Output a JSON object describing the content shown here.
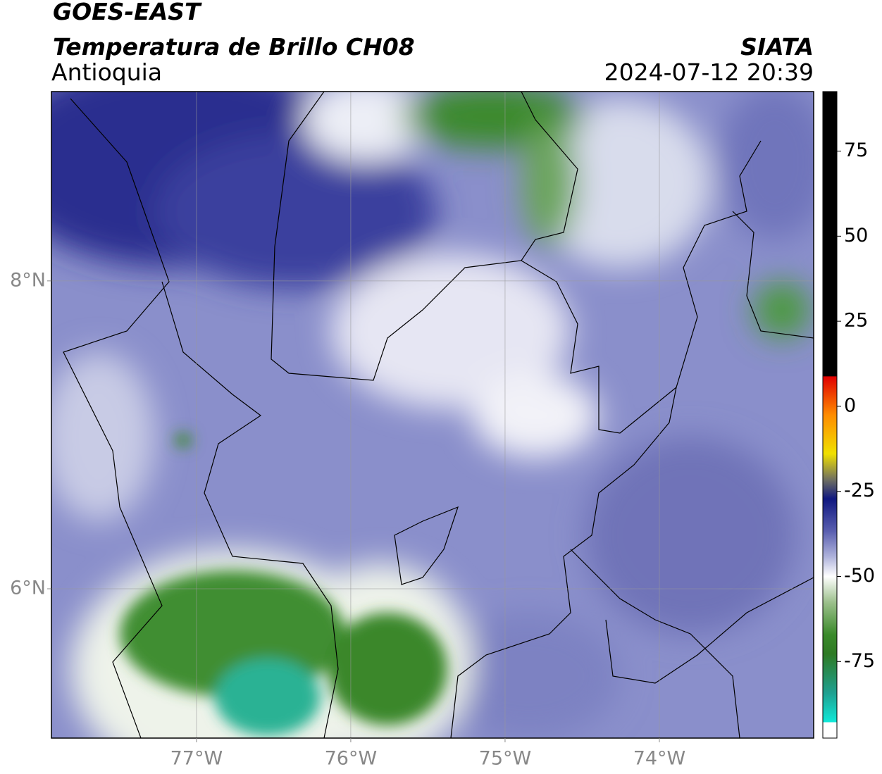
{
  "header": {
    "satellite": "GOES-EAST",
    "product": "Temperatura de Brillo CH08",
    "region": "Antioquia",
    "agency": "SIATA",
    "datetime": "2024-07-12 20:39"
  },
  "map": {
    "xlim": [
      -77.94,
      -73.0
    ],
    "ylim": [
      5.03,
      9.23
    ],
    "grid": true,
    "xticks": [
      {
        "value": -77,
        "label": "77°W"
      },
      {
        "value": -76,
        "label": "76°W"
      },
      {
        "value": -75,
        "label": "75°W"
      },
      {
        "value": -74,
        "label": "74°W"
      }
    ],
    "yticks": [
      {
        "value": 8,
        "label": "8°N"
      },
      {
        "value": 6,
        "label": "6°N"
      }
    ]
  },
  "colorbar": {
    "lim": [
      -97.5,
      92.5
    ],
    "ticks": [
      75,
      50,
      25,
      0,
      -25,
      -50,
      -75
    ]
  }
}
